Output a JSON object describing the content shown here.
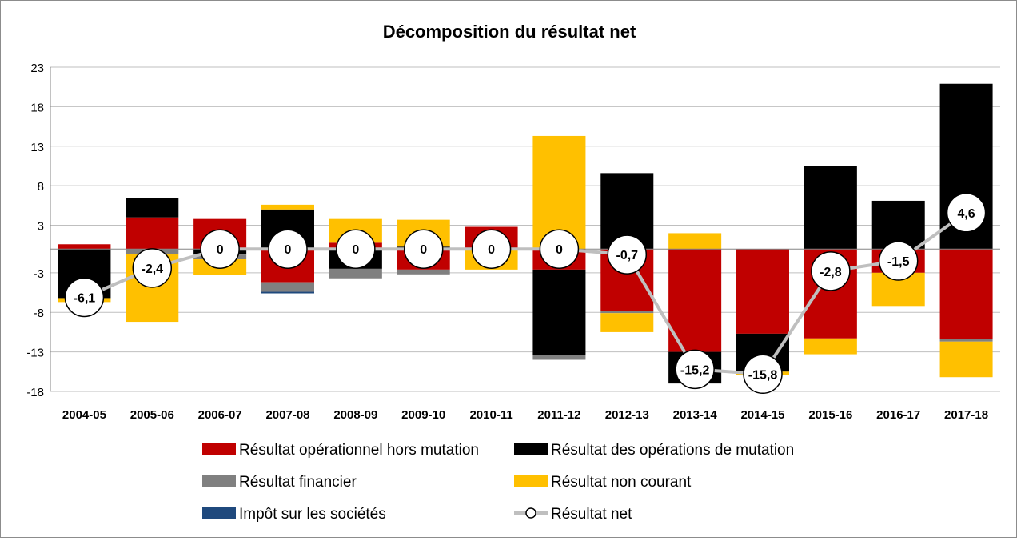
{
  "chart_data": {
    "type": "bar",
    "title": "Décomposition du résultat net",
    "stacked": true,
    "ylim": [
      -18,
      23
    ],
    "yticks": [
      23,
      18,
      13,
      8,
      3,
      -3,
      -8,
      -13,
      -18
    ],
    "grid": true,
    "legend_position": "bottom",
    "categories": [
      "2004-05",
      "2005-06",
      "2006-07",
      "2007-08",
      "2008-09",
      "2009-10",
      "2010-11",
      "2011-12",
      "2012-13",
      "2013-14",
      "2014-15",
      "2015-16",
      "2016-17",
      "2017-18"
    ],
    "series": [
      {
        "name": "Résultat opérationnel hors mutation",
        "color": "#c00000",
        "values": [
          0.6,
          4.0,
          3.8,
          -4.2,
          0.8,
          -2.6,
          2.8,
          -2.6,
          -7.8,
          -13.0,
          -10.7,
          -11.3,
          -3.0,
          -11.4
        ]
      },
      {
        "name": "Résultat des opérations de mutation",
        "color": "#000000",
        "values": [
          -6.2,
          2.4,
          -0.7,
          5.0,
          -2.5,
          0.3,
          0.0,
          -10.8,
          9.6,
          -4.0,
          -4.8,
          10.5,
          6.1,
          20.9
        ]
      },
      {
        "name": "Résultat financier",
        "color": "#808080",
        "values": [
          0.0,
          -0.6,
          -0.6,
          -1.2,
          -1.2,
          -0.6,
          0.0,
          -0.6,
          -0.3,
          0.0,
          0.0,
          0.0,
          0.0,
          -0.3
        ]
      },
      {
        "name": "Résultat non courant",
        "color": "#ffc000",
        "values": [
          -0.5,
          -8.6,
          -2.0,
          0.6,
          3.0,
          3.4,
          -2.6,
          14.3,
          -2.4,
          2.0,
          -0.4,
          -2.0,
          -4.2,
          -4.5
        ]
      },
      {
        "name": "Impôt sur les sociétés",
        "color": "#1f497d",
        "values": [
          0.0,
          0.0,
          0.0,
          -0.2,
          0.0,
          0.0,
          0.0,
          0.0,
          0.0,
          0.0,
          0.0,
          0.0,
          0.0,
          0.0
        ]
      }
    ],
    "line": {
      "name": "Résultat net",
      "color": "#bfbfbf",
      "values": [
        -6.1,
        -2.4,
        0,
        0,
        0,
        0,
        0,
        0,
        -0.7,
        -15.2,
        -15.8,
        -2.8,
        -1.5,
        4.6
      ],
      "labels": [
        "-6,1",
        "-2,4",
        "0",
        "0",
        "0",
        "0",
        "0",
        "0",
        "-0,7",
        "-15,2",
        "-15,8",
        "-2,8",
        "-1,5",
        "4,6"
      ]
    }
  }
}
